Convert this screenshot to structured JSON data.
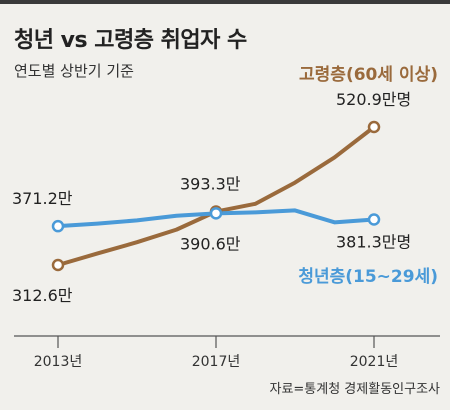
{
  "header": {
    "title": "청년 vs 고령층 취업자 수",
    "subtitle": "연도별 상반기 기준"
  },
  "footer": {
    "source": "자료=통계청 경제활동인구조사"
  },
  "colors": {
    "elderly": "#9a6a3c",
    "youth": "#4a9ad8",
    "background": "#f1f0ec",
    "axis": "#555555"
  },
  "chart_data": {
    "type": "line",
    "x": [
      2013,
      2014,
      2015,
      2016,
      2017,
      2018,
      2019,
      2020,
      2021
    ],
    "tick_labels": [
      "2013년",
      "2017년",
      "2021년"
    ],
    "tick_values": [
      2013,
      2017,
      2021
    ],
    "unit": "만명",
    "series": [
      {
        "name": "고령층(60세 이상)",
        "key": "elderly",
        "values": [
          312.6,
          330,
          347,
          366,
          393.3,
          405,
          437,
          475,
          520.9
        ],
        "point_labels": [
          "312.6만",
          "393.3만",
          "520.9만명"
        ],
        "point_label_index": [
          0,
          4,
          8
        ]
      },
      {
        "name": "청년층(15~29세)",
        "key": "youth",
        "values": [
          371.2,
          375,
          380,
          387,
          390.6,
          392,
          395,
          377,
          381.3
        ],
        "point_labels": [
          "371.2만",
          "390.6만",
          "381.3만명"
        ],
        "point_label_index": [
          0,
          4,
          8
        ]
      }
    ],
    "grid": false
  }
}
